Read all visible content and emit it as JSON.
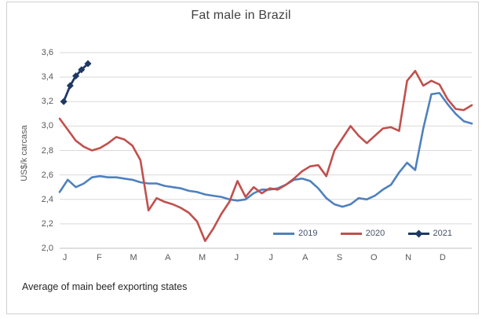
{
  "chart_data": {
    "type": "line",
    "title": "Fat male in Brazil",
    "ylabel": "US$/k carcasa",
    "footer": "Average of main beef exporting states",
    "x_unit": "weeks",
    "n_weeks": 52,
    "x_tick_labels": [
      "J",
      "F",
      "M",
      "A",
      "M",
      "J",
      "J",
      "A",
      "S",
      "O",
      "N",
      "D"
    ],
    "y_ticks": [
      {
        "value": 2.0,
        "label": "2,0"
      },
      {
        "value": 2.2,
        "label": "2,2"
      },
      {
        "value": 2.4,
        "label": "2,4"
      },
      {
        "value": 2.6,
        "label": "2,6"
      },
      {
        "value": 2.8,
        "label": "2,8"
      },
      {
        "value": 3.0,
        "label": "3,0"
      },
      {
        "value": 3.2,
        "label": "3,2"
      },
      {
        "value": 3.4,
        "label": "3,4"
      },
      {
        "value": 3.6,
        "label": "3,6"
      }
    ],
    "ylim": [
      2.0,
      3.6
    ],
    "grid": "horizontal",
    "grid_color": "#d9d9d9",
    "axis_color": "#c0c0c0",
    "legend_position": "inside-bottom-right",
    "series": [
      {
        "name": "2019",
        "color": "#4f81bd",
        "marker": "none",
        "values": [
          2.46,
          2.56,
          2.5,
          2.53,
          2.58,
          2.59,
          2.58,
          2.58,
          2.57,
          2.56,
          2.54,
          2.53,
          2.53,
          2.51,
          2.5,
          2.49,
          2.47,
          2.46,
          2.44,
          2.43,
          2.42,
          2.4,
          2.39,
          2.4,
          2.45,
          2.48,
          2.48,
          2.49,
          2.52,
          2.56,
          2.57,
          2.55,
          2.49,
          2.41,
          2.36,
          2.34,
          2.36,
          2.41,
          2.4,
          2.43,
          2.48,
          2.52,
          2.62,
          2.7,
          2.64,
          2.98,
          3.26,
          3.27,
          3.18,
          3.1,
          3.04,
          3.02
        ]
      },
      {
        "name": "2020",
        "color": "#c0504d",
        "marker": "none",
        "values": [
          3.06,
          2.97,
          2.88,
          2.83,
          2.8,
          2.82,
          2.86,
          2.91,
          2.89,
          2.84,
          2.72,
          2.31,
          2.41,
          2.38,
          2.36,
          2.33,
          2.29,
          2.22,
          2.06,
          2.16,
          2.28,
          2.38,
          2.55,
          2.42,
          2.5,
          2.45,
          2.49,
          2.48,
          2.52,
          2.57,
          2.63,
          2.67,
          2.68,
          2.59,
          2.8,
          2.9,
          3.0,
          2.92,
          2.86,
          2.92,
          2.98,
          2.99,
          2.96,
          3.37,
          3.45,
          3.33,
          3.37,
          3.34,
          3.22,
          3.14,
          3.13,
          3.17
        ]
      },
      {
        "name": "2021",
        "color": "#1f3864",
        "marker": "diamond",
        "weeks": [
          0.5,
          1.3,
          2.0,
          2.7,
          3.5
        ],
        "values": [
          3.2,
          3.33,
          3.41,
          3.46,
          3.51
        ]
      }
    ]
  }
}
